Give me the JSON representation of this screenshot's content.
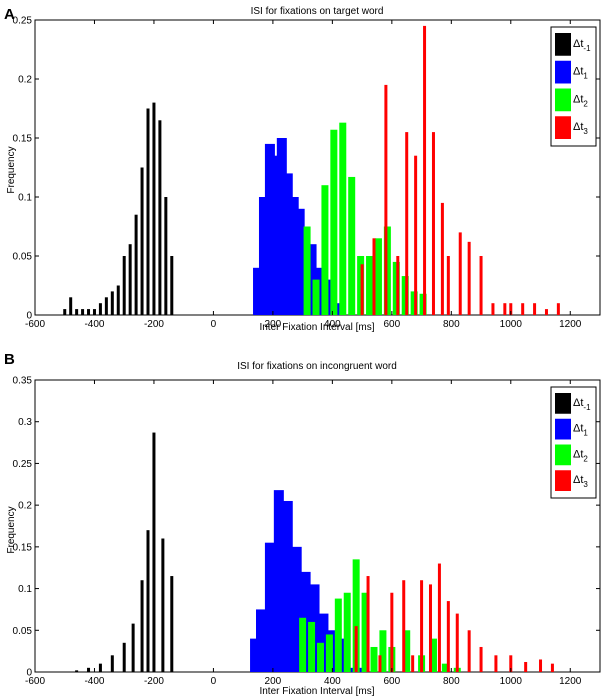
{
  "panels": [
    "A",
    "B"
  ],
  "chart_data": [
    {
      "type": "bar",
      "panel_label": "A",
      "title": "ISI for fixations on target word",
      "xlabel": "Inter Fixation Interval [ms]",
      "ylabel": "Frequency",
      "xlim": [
        -600,
        1300
      ],
      "ylim": [
        0,
        0.25
      ],
      "xticks": [
        -600,
        -400,
        -200,
        0,
        200,
        400,
        600,
        800,
        1000,
        1200
      ],
      "yticks": [
        "0",
        "0.05",
        "0.1",
        "0.15",
        "0.2",
        "0.25"
      ],
      "legend_position": "top-right",
      "series": [
        {
          "name": "Δt-1",
          "label_main": "Δt",
          "label_sub": "-1",
          "color": "#000000",
          "bar_width": 3,
          "x": [
            -500,
            -480,
            -460,
            -440,
            -420,
            -400,
            -380,
            -360,
            -340,
            -320,
            -300,
            -280,
            -260,
            -240,
            -220,
            -200,
            -180,
            -160,
            -140
          ],
          "values": [
            0.005,
            0.015,
            0.005,
            0.005,
            0.005,
            0.005,
            0.01,
            0.015,
            0.02,
            0.025,
            0.05,
            0.06,
            0.085,
            0.125,
            0.175,
            0.18,
            0.165,
            0.1,
            0.05
          ]
        },
        {
          "name": "Δt1",
          "label_main": "Δt",
          "label_sub": "1",
          "color": "#0000ff",
          "bar_width": 10,
          "x": [
            150,
            170,
            190,
            210,
            230,
            250,
            270,
            290,
            310,
            330,
            350,
            370,
            390,
            410
          ],
          "values": [
            0.04,
            0.1,
            0.145,
            0.135,
            0.15,
            0.12,
            0.1,
            0.09,
            0.06,
            0.06,
            0.04,
            0.03,
            0.03,
            0.01
          ],
          "comment": "Two thin overlap bars near 500 are drawn as part of series order"
        },
        {
          "name": "Δt2",
          "label_main": "Δt",
          "label_sub": "2",
          "color": "#00ff00",
          "bar_width": 7,
          "x": [
            315,
            345,
            375,
            405,
            435,
            465,
            495,
            525,
            555,
            585,
            615,
            645,
            675,
            705
          ],
          "values": [
            0.075,
            0.03,
            0.11,
            0.157,
            0.163,
            0.117,
            0.05,
            0.05,
            0.065,
            0.075,
            0.045,
            0.033,
            0.02,
            0.018
          ]
        },
        {
          "name": "Δt3",
          "label_main": "Δt",
          "label_sub": "3",
          "color": "#ff0000",
          "bar_width": 3,
          "x": [
            500,
            540,
            580,
            620,
            650,
            680,
            710,
            740,
            770,
            790,
            830,
            860,
            900,
            940,
            980,
            1000,
            1040,
            1080,
            1120,
            1160
          ],
          "values": [
            0.043,
            0.065,
            0.195,
            0.05,
            0.155,
            0.135,
            0.245,
            0.155,
            0.095,
            0.05,
            0.07,
            0.062,
            0.05,
            0.01,
            0.01,
            0.01,
            0.01,
            0.01,
            0.005,
            0.01
          ]
        }
      ]
    },
    {
      "type": "bar",
      "panel_label": "B",
      "title": "ISI for fixations on incongruent word",
      "xlabel": "Inter Fixation Interval [ms]",
      "ylabel": "Frequency",
      "xlim": [
        -600,
        1300
      ],
      "ylim": [
        0,
        0.35
      ],
      "xticks": [
        -600,
        -400,
        -200,
        0,
        200,
        400,
        600,
        800,
        1000,
        1200
      ],
      "yticks": [
        "0",
        "0.05",
        "0.1",
        "0.15",
        "0.2",
        "0.25",
        "0.3",
        "0.35"
      ],
      "legend_position": "top-right",
      "series": [
        {
          "name": "Δt-1",
          "label_main": "Δt",
          "label_sub": "-1",
          "color": "#000000",
          "bar_width": 3,
          "x": [
            -460,
            -420,
            -380,
            -340,
            -300,
            -270,
            -240,
            -220,
            -200,
            -170,
            -140
          ],
          "values": [
            0.002,
            0.005,
            0.01,
            0.02,
            0.035,
            0.058,
            0.11,
            0.17,
            0.287,
            0.16,
            0.115
          ]
        },
        {
          "name": "Δt1",
          "label_main": "Δt",
          "label_sub": "1",
          "color": "#0000ff",
          "bar_width": 10,
          "x": [
            140,
            160,
            190,
            220,
            250,
            280,
            310,
            340,
            370,
            400,
            430,
            460,
            500
          ],
          "values": [
            0.04,
            0.075,
            0.155,
            0.218,
            0.205,
            0.15,
            0.12,
            0.105,
            0.07,
            0.05,
            0.04,
            0.005,
            0.005
          ]
        },
        {
          "name": "Δt2",
          "label_main": "Δt",
          "label_sub": "2",
          "color": "#00ff00",
          "bar_width": 7,
          "x": [
            300,
            330,
            360,
            390,
            420,
            450,
            480,
            510,
            540,
            570,
            600,
            650,
            700,
            740,
            780,
            820
          ],
          "values": [
            0.065,
            0.06,
            0.035,
            0.045,
            0.088,
            0.095,
            0.135,
            0.095,
            0.03,
            0.05,
            0.03,
            0.05,
            0.02,
            0.04,
            0.01,
            0.005
          ]
        },
        {
          "name": "Δt3",
          "label_main": "Δt",
          "label_sub": "3",
          "color": "#ff0000",
          "bar_width": 3,
          "x": [
            480,
            520,
            560,
            600,
            640,
            670,
            700,
            730,
            760,
            790,
            820,
            860,
            900,
            950,
            1000,
            1050,
            1100,
            1140
          ],
          "values": [
            0.055,
            0.115,
            0.02,
            0.095,
            0.11,
            0.02,
            0.11,
            0.105,
            0.13,
            0.085,
            0.07,
            0.05,
            0.03,
            0.02,
            0.02,
            0.012,
            0.015,
            0.01
          ]
        }
      ]
    }
  ]
}
